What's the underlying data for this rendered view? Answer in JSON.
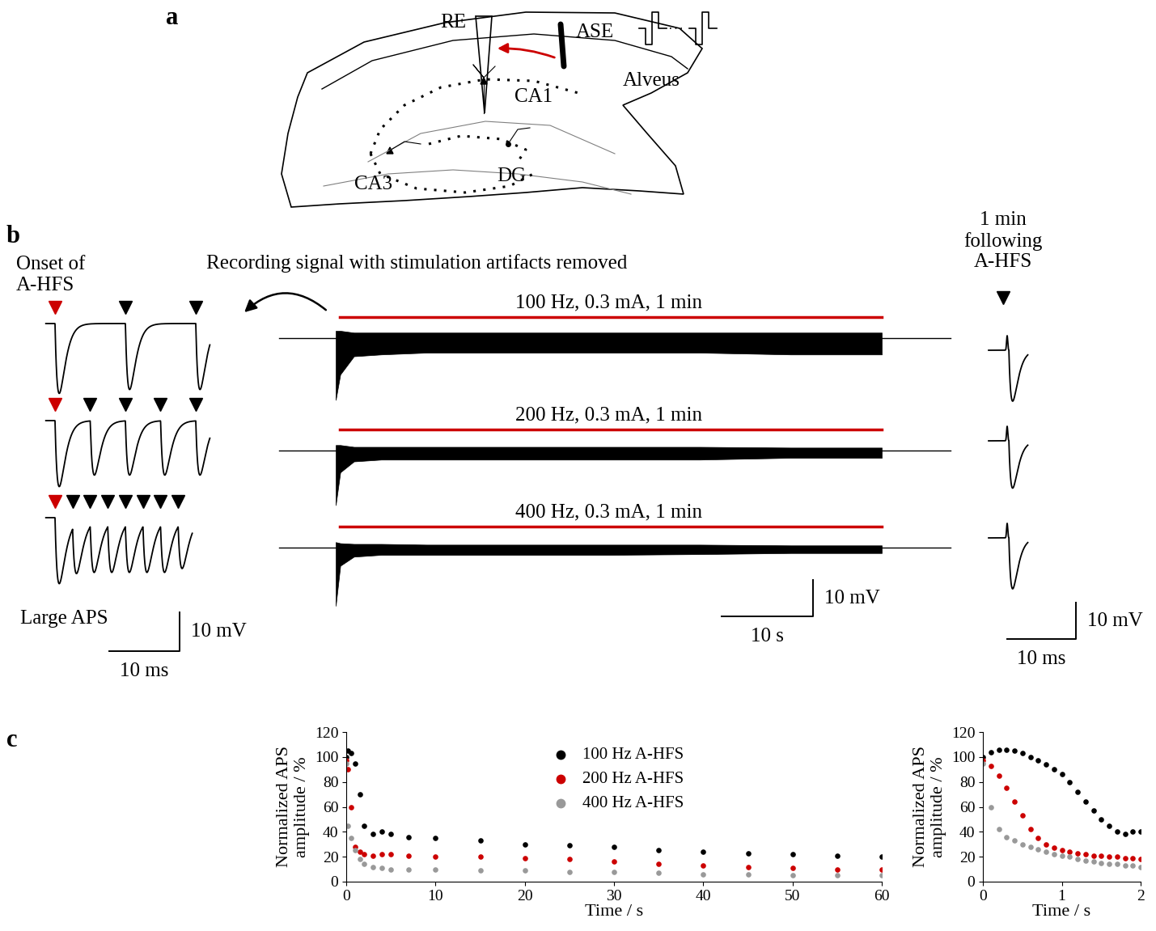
{
  "panel_labels": [
    "a",
    "b",
    "c"
  ],
  "diagram": {
    "labels": {
      "recording_electrode": "RE",
      "stimulating_electrode": "ASE",
      "alveus": "Alveus",
      "ca1": "CA1",
      "ca3": "CA3",
      "dg": "DG"
    }
  },
  "traces": {
    "onset_title": "Onset of\nA-HFS",
    "recording_note": "Recording signal with stimulation artifacts removed",
    "after_title": "1 min\nfollowing\nA-HFS",
    "large_aps_label": "Large APS",
    "scale_bars": {
      "onset": {
        "voltage": "10 mV",
        "time": "10 ms"
      },
      "recording": {
        "voltage": "10 mV",
        "time": "10 s"
      },
      "after": {
        "voltage": "10 mV",
        "time": "10 ms"
      }
    },
    "rows": [
      {
        "stim_label": "100 Hz, 0.3 mA, 1 min",
        "onset_spike_times_ms": [
          0,
          10,
          20
        ],
        "onset_spike_amplitudes_mV": [
          -18,
          -17,
          -17
        ],
        "t_s": [
          0,
          0.5,
          2,
          5,
          10,
          20,
          30,
          40,
          50,
          60
        ],
        "envelope_upper_mV": [
          2,
          2,
          1.5,
          1.5,
          1.5,
          1.5,
          1.5,
          1.5,
          1.5,
          1.5
        ],
        "envelope_lower_mV": [
          -17,
          -10,
          -5,
          -4.5,
          -4,
          -4,
          -4,
          -4,
          -4.5,
          -4.5
        ],
        "after_aps_amplitude_mV": -14
      },
      {
        "stim_label": "200 Hz, 0.3 mA, 1 min",
        "onset_spike_times_ms": [
          0,
          5,
          10,
          15,
          20
        ],
        "onset_spike_amplitudes_mV": [
          -17,
          -14,
          -14,
          -14,
          -14
        ],
        "t_s": [
          0,
          0.5,
          2,
          5,
          10,
          20,
          30,
          40,
          50,
          60
        ],
        "envelope_upper_mV": [
          1.5,
          1.5,
          1,
          1,
          1,
          1,
          1,
          1,
          0.8,
          0.8
        ],
        "envelope_lower_mV": [
          -15,
          -6,
          -3,
          -2.5,
          -2.5,
          -2.5,
          -2.5,
          -2.5,
          -2,
          -2
        ],
        "after_aps_amplitude_mV": -13
      },
      {
        "stim_label": "400 Hz, 0.3 mA, 1 min",
        "onset_spike_times_ms": [
          0,
          2.5,
          5,
          7.5,
          10,
          12.5,
          15,
          17.5
        ],
        "onset_spike_amplitudes_mV": [
          -17,
          -13,
          -13,
          -13,
          -13,
          -13,
          -13,
          -12
        ],
        "t_s": [
          0,
          0.5,
          2,
          5,
          10,
          20,
          30,
          40,
          50,
          60
        ],
        "envelope_upper_mV": [
          1.5,
          1.2,
          1,
          1,
          0.8,
          0.8,
          0.8,
          0.8,
          0.6,
          0.6
        ],
        "envelope_lower_mV": [
          -16,
          -5,
          -2.5,
          -2,
          -2,
          -2,
          -2,
          -1.8,
          -1.5,
          -1.5
        ],
        "after_aps_amplitude_mV": -14
      }
    ]
  },
  "chart_data": [
    {
      "type": "scatter",
      "xlabel": "Time / s",
      "ylabel": "Normalized APS\namplitude / %",
      "x": [
        0,
        0.2,
        0.5,
        1,
        1.5,
        2,
        3,
        4,
        5,
        7,
        10,
        15,
        20,
        25,
        30,
        35,
        40,
        45,
        50,
        55,
        60
      ],
      "xlim": [
        0,
        60
      ],
      "xticks": [
        0,
        10,
        20,
        30,
        40,
        50,
        60
      ],
      "ylim": [
        0,
        120
      ],
      "yticks": [
        0,
        20,
        40,
        60,
        80,
        100,
        120
      ],
      "grid": false,
      "legend": "upper center",
      "series": [
        {
          "name": "100 Hz A-HFS",
          "color": "#000000",
          "marker": "o",
          "values": [
            100,
            105,
            103,
            95,
            70,
            45,
            38,
            40,
            38,
            36,
            35,
            33,
            30,
            29,
            28,
            25,
            24,
            23,
            22,
            21,
            20
          ]
        },
        {
          "name": "200 Hz A-HFS",
          "color": "#cc0000",
          "marker": "o",
          "values": [
            97,
            90,
            60,
            28,
            24,
            22,
            21,
            22,
            22,
            21,
            20,
            20,
            19,
            18,
            16,
            14,
            13,
            12,
            11,
            10,
            10
          ]
        },
        {
          "name": "400 Hz A-HFS",
          "color": "#999999",
          "marker": "o",
          "values": [
            95,
            45,
            35,
            25,
            18,
            14,
            12,
            11,
            10,
            10,
            10,
            9,
            9,
            8,
            8,
            7,
            6,
            6,
            5,
            5,
            5
          ]
        }
      ]
    },
    {
      "type": "scatter",
      "xlabel": "Time / s",
      "ylabel": "Normalized APS\namplitude / %",
      "x": [
        0,
        0.1,
        0.2,
        0.3,
        0.4,
        0.5,
        0.6,
        0.7,
        0.8,
        0.9,
        1.0,
        1.1,
        1.2,
        1.3,
        1.4,
        1.5,
        1.6,
        1.7,
        1.8,
        1.9,
        2.0
      ],
      "xlim": [
        0,
        2
      ],
      "xticks": [
        0,
        1,
        2
      ],
      "ylim": [
        0,
        120
      ],
      "yticks": [
        0,
        20,
        40,
        60,
        80,
        100,
        120
      ],
      "grid": false,
      "series": [
        {
          "name": "100 Hz A-HFS",
          "color": "#000000",
          "marker": "o",
          "values": [
            100,
            104,
            106,
            106,
            105,
            103,
            100,
            97,
            94,
            90,
            86,
            80,
            72,
            64,
            57,
            50,
            45,
            40,
            38,
            40,
            40
          ]
        },
        {
          "name": "200 Hz A-HFS",
          "color": "#cc0000",
          "marker": "o",
          "values": [
            97,
            93,
            85,
            75,
            64,
            53,
            42,
            35,
            30,
            27,
            25,
            24,
            23,
            22,
            21,
            21,
            20,
            20,
            19,
            19,
            18
          ]
        },
        {
          "name": "400 Hz A-HFS",
          "color": "#999999",
          "marker": "o",
          "values": [
            95,
            60,
            42,
            36,
            33,
            30,
            28,
            26,
            24,
            22,
            21,
            20,
            18,
            17,
            16,
            15,
            14,
            14,
            13,
            13,
            12
          ]
        }
      ]
    }
  ]
}
